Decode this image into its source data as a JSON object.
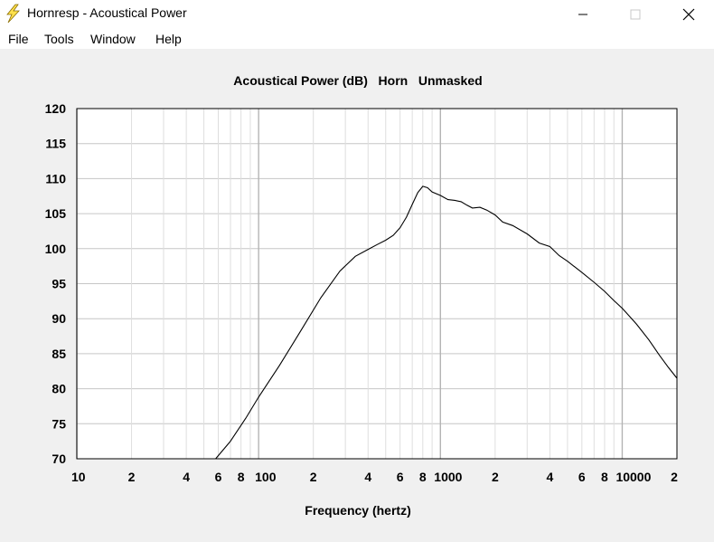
{
  "window": {
    "title": "Hornresp - Acoustical Power",
    "icon": "lightning-icon",
    "controls": [
      "minimize-icon",
      "maximize-icon",
      "close-icon"
    ]
  },
  "menu": [
    {
      "label": "File"
    },
    {
      "label": "Tools"
    },
    {
      "label": "Window"
    },
    {
      "label": "Help"
    }
  ],
  "chart_data": {
    "type": "line",
    "title": "Acoustical Power (dB)   Horn   Unmasked",
    "xlabel": "Frequency (hertz)",
    "ylabel": "",
    "x_scale": "log",
    "xlim": [
      10,
      20000
    ],
    "ylim": [
      70,
      120
    ],
    "y_ticks": [
      70,
      75,
      80,
      85,
      90,
      95,
      100,
      105,
      110,
      115,
      120
    ],
    "x_ticks": [
      {
        "value": 10,
        "label": "10"
      },
      {
        "value": 20,
        "label": "2"
      },
      {
        "value": 40,
        "label": "4"
      },
      {
        "value": 60,
        "label": "6"
      },
      {
        "value": 80,
        "label": "8"
      },
      {
        "value": 100,
        "label": "100"
      },
      {
        "value": 200,
        "label": "2"
      },
      {
        "value": 400,
        "label": "4"
      },
      {
        "value": 600,
        "label": "6"
      },
      {
        "value": 800,
        "label": "8"
      },
      {
        "value": 1000,
        "label": "1000"
      },
      {
        "value": 2000,
        "label": "2"
      },
      {
        "value": 4000,
        "label": "4"
      },
      {
        "value": 6000,
        "label": "6"
      },
      {
        "value": 8000,
        "label": "8"
      },
      {
        "value": 10000,
        "label": "10000"
      },
      {
        "value": 20000,
        "label": "2"
      }
    ],
    "grid": true,
    "series": [
      {
        "color": "#000000",
        "x": [
          58,
          70,
          85,
          100,
          130,
          170,
          220,
          280,
          340,
          400,
          450,
          500,
          550,
          600,
          650,
          700,
          750,
          800,
          850,
          900,
          1000,
          1100,
          1200,
          1300,
          1400,
          1500,
          1650,
          1800,
          2000,
          2200,
          2500,
          3000,
          3500,
          4000,
          4500,
          5000,
          6000,
          7000,
          8000,
          9000,
          10000,
          11000,
          12000,
          14000,
          16000,
          18000,
          20000
        ],
        "y": [
          70,
          72.5,
          75.8,
          78.8,
          83.3,
          88.2,
          93.0,
          96.8,
          98.9,
          99.9,
          100.6,
          101.2,
          101.9,
          103.0,
          104.5,
          106.3,
          108.0,
          108.9,
          108.7,
          108.1,
          107.6,
          107.0,
          106.9,
          106.7,
          106.2,
          105.8,
          105.9,
          105.5,
          104.8,
          103.8,
          103.3,
          102.1,
          100.8,
          100.3,
          99.0,
          98.2,
          96.6,
          95.2,
          93.9,
          92.6,
          91.5,
          90.3,
          89.2,
          87.0,
          84.8,
          83.0,
          81.5
        ]
      }
    ]
  }
}
